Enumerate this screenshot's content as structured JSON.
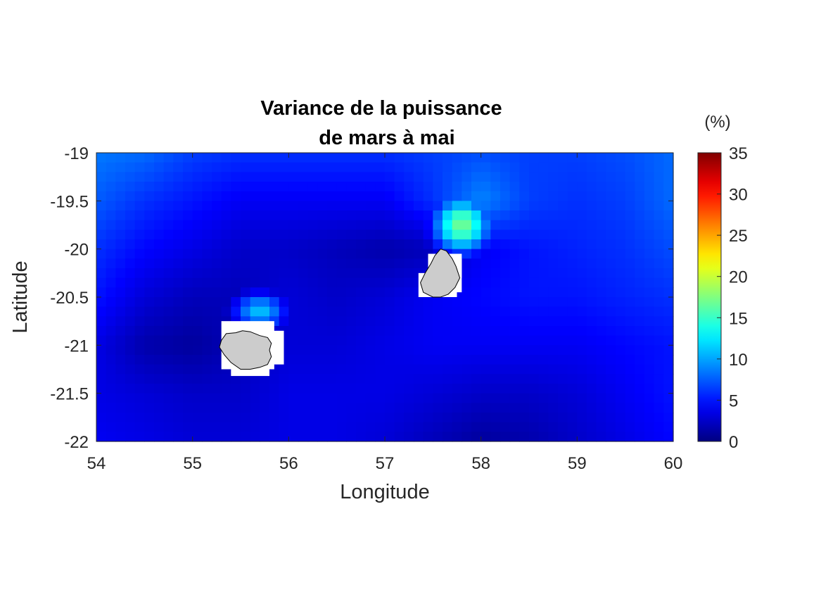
{
  "chart_data": {
    "type": "heatmap",
    "title": [
      "Variance de la puissance",
      "de mars à mai"
    ],
    "xlabel": "Longitude",
    "ylabel": "Latitude",
    "xlim": [
      54,
      60
    ],
    "ylim": [
      -22,
      -19
    ],
    "xticks": [
      54,
      55,
      56,
      57,
      58,
      59,
      60
    ],
    "xtick_labels": [
      "54",
      "55",
      "56",
      "57",
      "58",
      "59",
      "60"
    ],
    "yticks": [
      -19,
      -19.5,
      -20,
      -20.5,
      -21,
      -21.5,
      -22
    ],
    "ytick_labels": [
      "-19",
      "-19.5",
      "-20",
      "-20.5",
      "-21",
      "-21.5",
      "-22"
    ],
    "colorbar": {
      "unit": "(%)",
      "range": [
        0,
        35
      ],
      "ticks": [
        0,
        5,
        10,
        15,
        20,
        25,
        30,
        35
      ],
      "tick_labels": [
        "0",
        "5",
        "10",
        "15",
        "20",
        "25",
        "30",
        "35"
      ],
      "colormap": "jet"
    },
    "grid": false,
    "field": {
      "description_of_values": "variance (%) sampled on a lon/lat grid",
      "lon": [
        54.0,
        54.5,
        55.0,
        55.5,
        56.0,
        56.5,
        57.0,
        57.5,
        58.0,
        58.5,
        59.0,
        59.5,
        60.0
      ],
      "lat": [
        -19.0,
        -19.5,
        -20.0,
        -20.5,
        -21.0,
        -21.5,
        -22.0
      ],
      "values": [
        [
          8.5,
          8.0,
          6.5,
          6.0,
          6.0,
          6.0,
          6.0,
          6.5,
          7.0,
          6.5,
          6.5,
          7.0,
          8.0
        ],
        [
          7.5,
          6.0,
          5.0,
          4.0,
          4.0,
          4.0,
          4.0,
          6.0,
          9.0,
          6.5,
          6.0,
          6.5,
          8.0
        ],
        [
          6.0,
          4.5,
          3.5,
          2.5,
          2.5,
          2.0,
          1.5,
          2.0,
          4.0,
          5.0,
          5.5,
          6.0,
          7.0
        ],
        [
          5.0,
          3.0,
          2.0,
          2.0,
          3.0,
          2.5,
          3.0,
          4.0,
          4.5,
          5.0,
          5.0,
          5.5,
          6.0
        ],
        [
          3.5,
          1.5,
          1.0,
          2.0,
          3.0,
          3.0,
          3.5,
          4.0,
          4.0,
          4.0,
          4.0,
          4.5,
          5.0
        ],
        [
          3.5,
          3.0,
          2.5,
          2.5,
          3.5,
          3.5,
          3.5,
          3.0,
          2.5,
          2.5,
          3.0,
          4.0,
          5.0
        ],
        [
          4.0,
          3.5,
          3.0,
          3.0,
          3.5,
          3.5,
          3.0,
          2.0,
          1.0,
          1.5,
          2.5,
          3.5,
          4.5
        ]
      ],
      "hotspots": [
        {
          "lon": 57.8,
          "lat": -19.75,
          "value": 17,
          "spread_lon": 0.3,
          "spread_lat": 0.3
        },
        {
          "lon": 55.7,
          "lat": -20.65,
          "value": 11,
          "spread_lon": 0.28,
          "spread_lat": 0.2
        }
      ]
    },
    "land_masses": [
      {
        "island": "Réunion",
        "mask_cells": [
          [
            55.3,
            -20.75,
            55.85,
            -21.25
          ],
          [
            55.4,
            -21.25,
            55.8,
            -21.32
          ],
          [
            55.8,
            -20.85,
            55.95,
            -21.2
          ]
        ],
        "outline": [
          [
            55.3,
            -20.95
          ],
          [
            55.35,
            -20.88
          ],
          [
            55.45,
            -20.87
          ],
          [
            55.52,
            -20.85
          ],
          [
            55.6,
            -20.86
          ],
          [
            55.7,
            -20.9
          ],
          [
            55.78,
            -20.92
          ],
          [
            55.82,
            -20.98
          ],
          [
            55.8,
            -21.05
          ],
          [
            55.82,
            -21.12
          ],
          [
            55.78,
            -21.2
          ],
          [
            55.7,
            -21.23
          ],
          [
            55.6,
            -21.25
          ],
          [
            55.5,
            -21.25
          ],
          [
            55.4,
            -21.18
          ],
          [
            55.33,
            -21.1
          ],
          [
            55.28,
            -21.02
          ]
        ]
      },
      {
        "island": "Maurice",
        "mask_cells": [
          [
            57.45,
            -20.05,
            57.8,
            -20.45
          ],
          [
            57.35,
            -20.25,
            57.5,
            -20.5
          ],
          [
            57.45,
            -20.4,
            57.75,
            -20.5
          ],
          [
            57.75,
            -20.1,
            57.8,
            -20.3
          ]
        ],
        "outline": [
          [
            57.58,
            -20.0
          ],
          [
            57.64,
            -20.02
          ],
          [
            57.7,
            -20.1
          ],
          [
            57.74,
            -20.18
          ],
          [
            57.78,
            -20.3
          ],
          [
            57.73,
            -20.4
          ],
          [
            57.66,
            -20.47
          ],
          [
            57.58,
            -20.5
          ],
          [
            57.5,
            -20.5
          ],
          [
            57.4,
            -20.45
          ],
          [
            57.37,
            -20.35
          ],
          [
            57.42,
            -20.25
          ],
          [
            57.48,
            -20.15
          ],
          [
            57.52,
            -20.07
          ]
        ]
      }
    ],
    "colors": {
      "land_fill": "#cccccc",
      "land_edge": "#000000",
      "mask": "#ffffff",
      "axis_box": "#262626"
    }
  }
}
